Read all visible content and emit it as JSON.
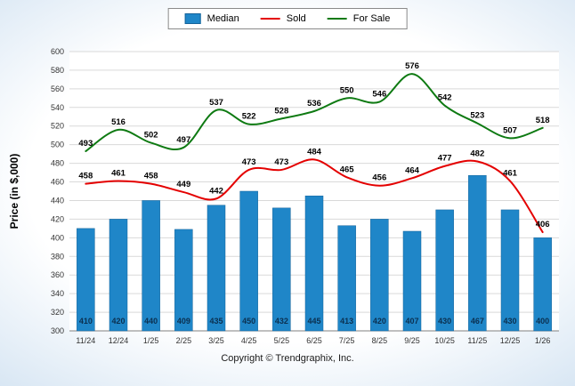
{
  "footer": "Copyright © Trendgraphix, Inc.",
  "colors": {
    "median": "#1f86c8",
    "median_border": "#15639a",
    "sold": "#e40000",
    "for_sale": "#0e7a12",
    "bar_label": "#0b3050",
    "point_label": "#000000",
    "grid": "#d9d9d9",
    "axis": "#808080"
  },
  "chart_data": {
    "type": "bar+line combo",
    "categories": [
      "11/24",
      "12/24",
      "1/25",
      "2/25",
      "3/25",
      "4/25",
      "5/25",
      "6/25",
      "7/25",
      "8/25",
      "9/25",
      "10/25",
      "11/25",
      "12/25",
      "1/26"
    ],
    "series": [
      {
        "name": "Median",
        "type": "bar",
        "color_key": "median",
        "values": [
          410,
          420,
          440,
          409,
          435,
          450,
          432,
          445,
          413,
          420,
          407,
          430,
          467,
          430,
          400
        ]
      },
      {
        "name": "Sold",
        "type": "line",
        "color_key": "sold",
        "values": [
          458,
          461,
          458,
          449,
          442,
          473,
          473,
          484,
          465,
          456,
          464,
          477,
          482,
          461,
          406
        ]
      },
      {
        "name": "For Sale",
        "type": "line",
        "color_key": "for_sale",
        "values": [
          493,
          516,
          502,
          497,
          537,
          522,
          528,
          536,
          550,
          546,
          576,
          542,
          523,
          507,
          518
        ]
      }
    ],
    "title": "",
    "xlabel": "",
    "ylabel": "Price (in $,000)",
    "ylim": [
      300,
      600
    ],
    "ytick_step": 20,
    "grid": true,
    "legend_position": "top-center"
  }
}
